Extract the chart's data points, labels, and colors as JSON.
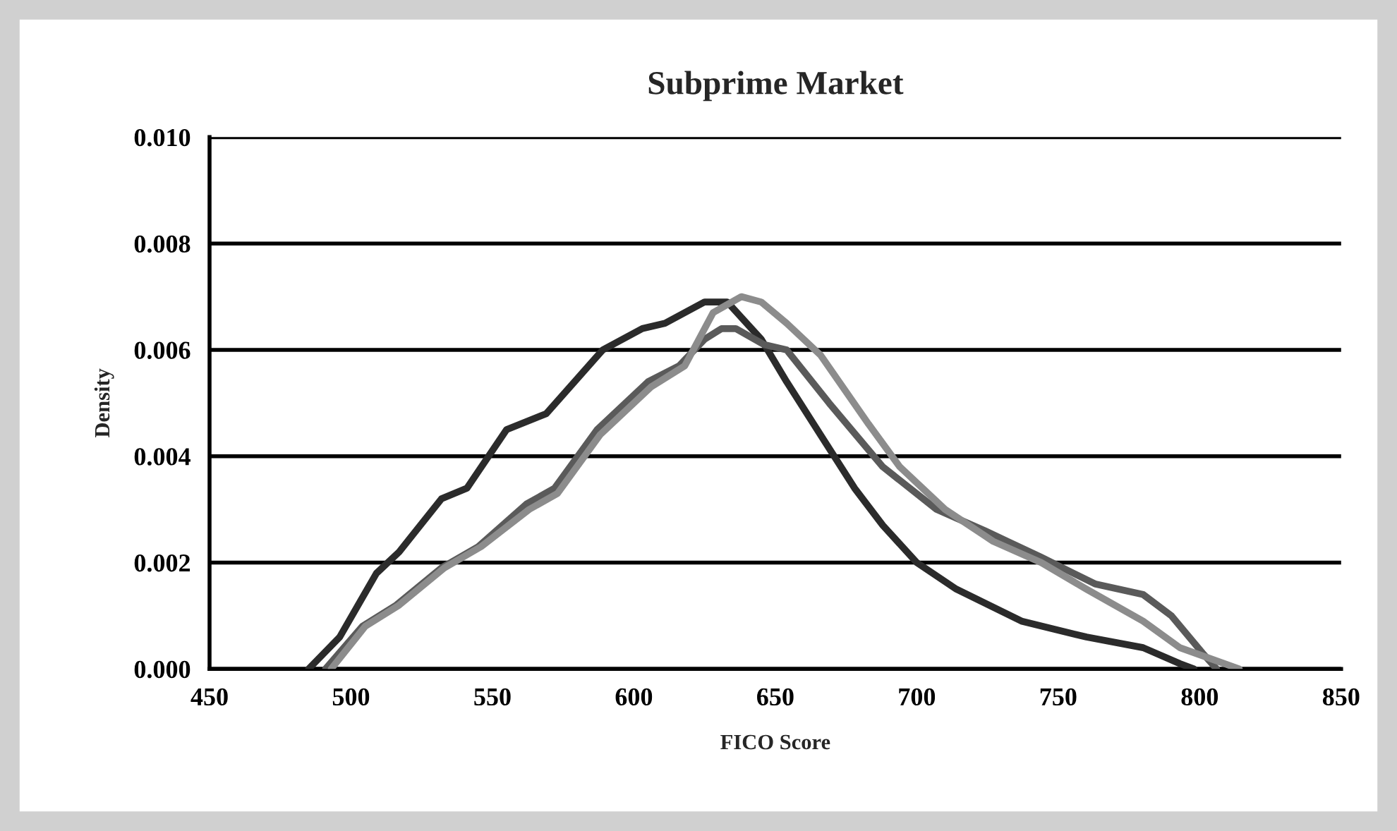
{
  "chart_data": {
    "type": "line",
    "title": "Subprime Market",
    "xlabel": "FICO Score",
    "ylabel": "Density",
    "xlim": [
      450,
      850
    ],
    "xticks": [
      450,
      500,
      550,
      600,
      650,
      700,
      750,
      800,
      850
    ],
    "ylim": [
      0,
      0.01
    ],
    "yticks": [
      {
        "value": 0,
        "label": "0.000"
      },
      {
        "value": 0.002,
        "label": "0.002"
      },
      {
        "value": 0.004,
        "label": "0.004"
      },
      {
        "value": 0.006,
        "label": "0.006"
      },
      {
        "value": 0.008,
        "label": "0.008"
      },
      {
        "value": 0.01,
        "label": "0.010"
      }
    ],
    "grid": "y",
    "line_style": "solid",
    "marker": "none",
    "series": [
      {
        "color": "#2b2b2b",
        "x": [
          485,
          496,
          509,
          517,
          532,
          541,
          555,
          569,
          579,
          589,
          603,
          611,
          625,
          633,
          645,
          654,
          666,
          678,
          688,
          700,
          714,
          737,
          760,
          780,
          793,
          798
        ],
        "values": [
          0,
          0.0006,
          0.0018,
          0.0022,
          0.0032,
          0.0034,
          0.0045,
          0.0048,
          0.0054,
          0.006,
          0.0064,
          0.0065,
          0.0069,
          0.0069,
          0.0062,
          0.0054,
          0.0044,
          0.0034,
          0.0027,
          0.002,
          0.0015,
          0.0009,
          0.0006,
          0.0004,
          0.0001,
          0
        ]
      },
      {
        "color": "#5a5a5a",
        "x": [
          491,
          504,
          516,
          532,
          545,
          562,
          572,
          587,
          605,
          616,
          625,
          631,
          636,
          646,
          654,
          669,
          688,
          707,
          724,
          744,
          763,
          780,
          790,
          801,
          806
        ],
        "values": [
          0,
          0.0008,
          0.0012,
          0.0019,
          0.0023,
          0.0031,
          0.0034,
          0.0045,
          0.0054,
          0.0057,
          0.0062,
          0.0064,
          0.0064,
          0.0061,
          0.006,
          0.005,
          0.0038,
          0.003,
          0.0026,
          0.0021,
          0.0016,
          0.0014,
          0.001,
          0.0003,
          0
        ]
      },
      {
        "color": "#8c8c8c",
        "x": [
          493,
          505,
          517,
          533,
          546,
          563,
          573,
          588,
          606,
          618,
          628,
          638,
          645,
          654,
          666,
          683,
          694,
          710,
          727,
          744,
          760,
          780,
          793,
          814
        ],
        "values": [
          0,
          0.0008,
          0.0012,
          0.0019,
          0.0023,
          0.003,
          0.0033,
          0.0044,
          0.0053,
          0.0057,
          0.0067,
          0.007,
          0.0069,
          0.0065,
          0.0059,
          0.0046,
          0.0038,
          0.003,
          0.0024,
          0.002,
          0.0015,
          0.0009,
          0.0004,
          0
        ]
      }
    ]
  }
}
